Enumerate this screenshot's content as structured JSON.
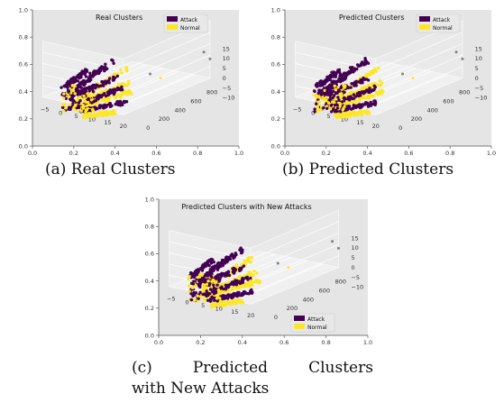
{
  "colors": {
    "attack": "#440154",
    "normal": "#fde725",
    "outlier": "#808080",
    "pane": "#e5e5e5"
  },
  "chart_data": [
    {
      "type": "scatter",
      "title": "Real Clusters",
      "legend": [
        "Attack",
        "Normal"
      ],
      "legend_placement": "top-right",
      "caption": "(a) Real Clusters",
      "x_ticks": [
        "0.0",
        "0.2",
        "0.4",
        "0.6",
        "0.8",
        "1.0"
      ],
      "y_ticks": [
        "0.0",
        "0.2",
        "0.4",
        "0.6",
        "0.8",
        "1.0"
      ],
      "axis3d_x_ticks": [
        "−5",
        "0",
        "5",
        "10",
        "15",
        "20"
      ],
      "axis3d_y_ticks": [
        "0",
        "200",
        "400",
        "600",
        "800"
      ],
      "axis3d_z_ticks": [
        "15",
        "10",
        "5",
        "0",
        "−5",
        "−10"
      ],
      "xlim": [
        0,
        1
      ],
      "ylim": [
        0,
        1
      ],
      "grid": true
    },
    {
      "type": "scatter",
      "title": "Predicted Clusters",
      "legend": [
        "Attack",
        "Normal"
      ],
      "legend_placement": "top-right",
      "caption": "(b) Predicted Clusters",
      "x_ticks": [
        "0.0",
        "0.2",
        "0.4",
        "0.6",
        "0.8",
        "1.0"
      ],
      "y_ticks": [
        "0.0",
        "0.2",
        "0.4",
        "0.6",
        "0.8",
        "1.0"
      ],
      "axis3d_x_ticks": [
        "−5",
        "0",
        "5",
        "10",
        "15",
        "20"
      ],
      "axis3d_y_ticks": [
        "0",
        "200",
        "400",
        "600",
        "800"
      ],
      "axis3d_z_ticks": [
        "15",
        "10",
        "5",
        "0",
        "−5",
        "−10"
      ],
      "xlim": [
        0,
        1
      ],
      "ylim": [
        0,
        1
      ],
      "grid": true
    },
    {
      "type": "scatter",
      "title": "Predicted Clusters with New Attacks",
      "legend": [
        "Attack",
        "Normal"
      ],
      "legend_placement": "bottom-right",
      "caption_line1": [
        "(c)",
        "Predicted",
        "Clusters"
      ],
      "caption_line2": "with New Attacks",
      "x_ticks": [
        "0.0",
        "0.2",
        "0.4",
        "0.6",
        "0.8",
        "1.0"
      ],
      "y_ticks": [
        "0.0",
        "0.2",
        "0.4",
        "0.6",
        "0.8",
        "1.0"
      ],
      "axis3d_x_ticks": [
        "−5",
        "0",
        "5",
        "10",
        "15",
        "20"
      ],
      "axis3d_y_ticks": [
        "0",
        "200",
        "400",
        "600",
        "800"
      ],
      "axis3d_z_ticks": [
        "15",
        "10",
        "5",
        "0",
        "−5",
        "−10"
      ],
      "xlim": [
        0,
        1
      ],
      "ylim": [
        0,
        1
      ],
      "grid": true
    }
  ]
}
